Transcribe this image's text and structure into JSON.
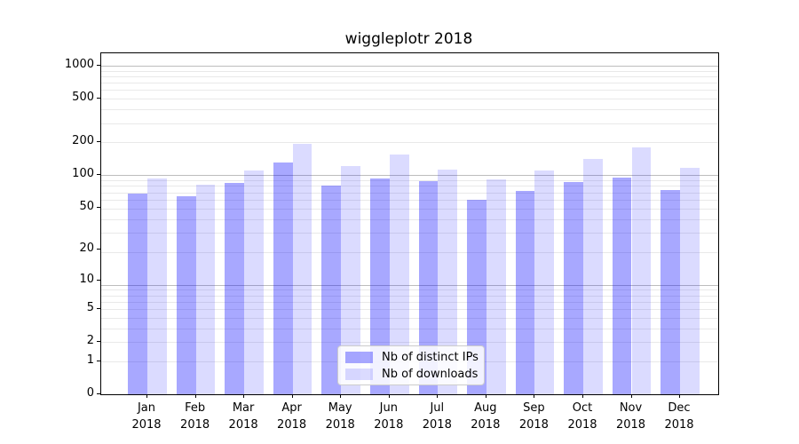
{
  "title": "wiggleplotr 2018",
  "chart_data": {
    "type": "bar",
    "title": "wiggleplotr 2018",
    "categories": [
      "Jan",
      "Feb",
      "Mar",
      "Apr",
      "May",
      "Jun",
      "Jul",
      "Aug",
      "Sep",
      "Oct",
      "Nov",
      "Dec"
    ],
    "year_label": "2018",
    "series": [
      {
        "name": "Nb of distinct IPs",
        "color_hex": "#0000ff",
        "alpha": 0.34,
        "values": [
          67,
          63,
          85,
          131,
          80,
          93,
          87,
          59,
          71,
          86,
          94,
          72
        ]
      },
      {
        "name": "Nb of downloads",
        "color_hex": "#0000ff",
        "alpha": 0.14,
        "values": [
          92,
          81,
          109,
          194,
          121,
          154,
          111,
          90,
          109,
          141,
          179,
          116
        ]
      }
    ],
    "yscale": "log1p",
    "y_ticks": [
      0,
      1,
      2,
      5,
      10,
      20,
      50,
      100,
      200,
      500,
      1000
    ],
    "y_tick_labels": [
      "0",
      "1",
      "2",
      "5",
      "10",
      "20",
      "50",
      "100",
      "200",
      "500",
      "1000"
    ],
    "ylim_top": 1300,
    "xlabel": "",
    "ylabel": "",
    "grid": true,
    "legend_position": "lower center"
  },
  "colors": {
    "major_grid": "#bdbdbd",
    "minor_grid": "#e9e9e9",
    "axis": "#000000",
    "legend_border": "#cccccc"
  }
}
